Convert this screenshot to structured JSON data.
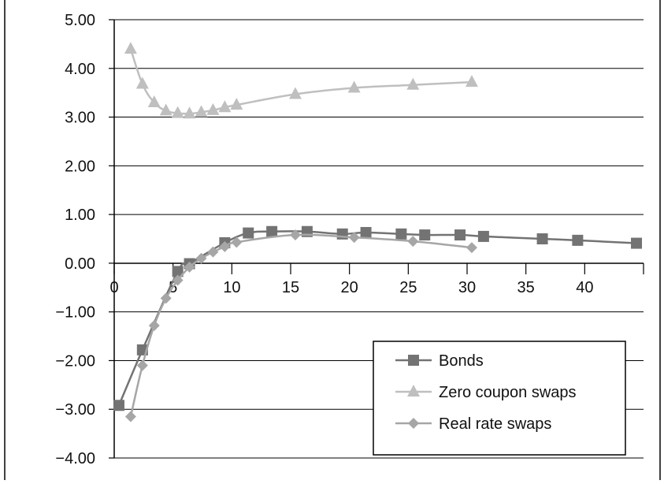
{
  "chart_data": {
    "type": "line",
    "title": "",
    "xlabel": "",
    "ylabel": "",
    "xlim": [
      0,
      45
    ],
    "ylim": [
      -4,
      5
    ],
    "x_ticks": [
      0,
      5,
      10,
      15,
      20,
      25,
      30,
      35,
      40
    ],
    "y_ticks": [
      5,
      4,
      3,
      2,
      1,
      0,
      -1,
      -2,
      -3,
      -4
    ],
    "x_tick_labels": [
      "0",
      "5",
      "10",
      "15",
      "20",
      "25",
      "30",
      "35",
      "40"
    ],
    "y_tick_labels": [
      "5.00",
      "4.00",
      "3.00",
      "2.00",
      "1.00",
      "0.00",
      "−1.00",
      "−2.00",
      "−3.00",
      "−4.00"
    ],
    "grid": "horizontal",
    "legend_position": "bottom-right",
    "series": [
      {
        "name": "Bonds",
        "marker": "square",
        "color": "#737373",
        "points": [
          [
            0.4,
            -2.92
          ],
          [
            2.4,
            -1.78
          ],
          [
            5.4,
            -0.17
          ],
          [
            6.4,
            -0.01
          ],
          [
            9.4,
            0.42
          ],
          [
            11.4,
            0.62
          ],
          [
            13.4,
            0.65
          ],
          [
            16.4,
            0.65
          ],
          [
            19.4,
            0.6
          ],
          [
            21.4,
            0.63
          ],
          [
            24.4,
            0.6
          ],
          [
            26.4,
            0.58
          ],
          [
            29.4,
            0.58
          ],
          [
            31.4,
            0.55
          ],
          [
            36.4,
            0.5
          ],
          [
            39.4,
            0.47
          ],
          [
            44.4,
            0.41
          ]
        ]
      },
      {
        "name": "Zero coupon swaps",
        "marker": "triangle",
        "color": "#bfbfbf",
        "points": [
          [
            1.4,
            4.4
          ],
          [
            2.4,
            3.68
          ],
          [
            3.4,
            3.3
          ],
          [
            4.4,
            3.13
          ],
          [
            5.4,
            3.08
          ],
          [
            6.4,
            3.07
          ],
          [
            7.4,
            3.1
          ],
          [
            8.4,
            3.14
          ],
          [
            9.4,
            3.2
          ],
          [
            10.4,
            3.25
          ],
          [
            15.4,
            3.47
          ],
          [
            20.4,
            3.6
          ],
          [
            25.4,
            3.66
          ],
          [
            30.4,
            3.72
          ]
        ]
      },
      {
        "name": "Real rate swaps",
        "marker": "diamond",
        "color": "#a6a6a6",
        "points": [
          [
            1.4,
            -3.15
          ],
          [
            2.4,
            -2.1
          ],
          [
            3.4,
            -1.28
          ],
          [
            4.4,
            -0.72
          ],
          [
            5.4,
            -0.35
          ],
          [
            6.4,
            -0.08
          ],
          [
            7.4,
            0.1
          ],
          [
            8.4,
            0.23
          ],
          [
            9.4,
            0.34
          ],
          [
            10.4,
            0.43
          ],
          [
            15.4,
            0.58
          ],
          [
            20.4,
            0.53
          ],
          [
            25.4,
            0.45
          ],
          [
            30.4,
            0.32
          ]
        ]
      }
    ]
  }
}
